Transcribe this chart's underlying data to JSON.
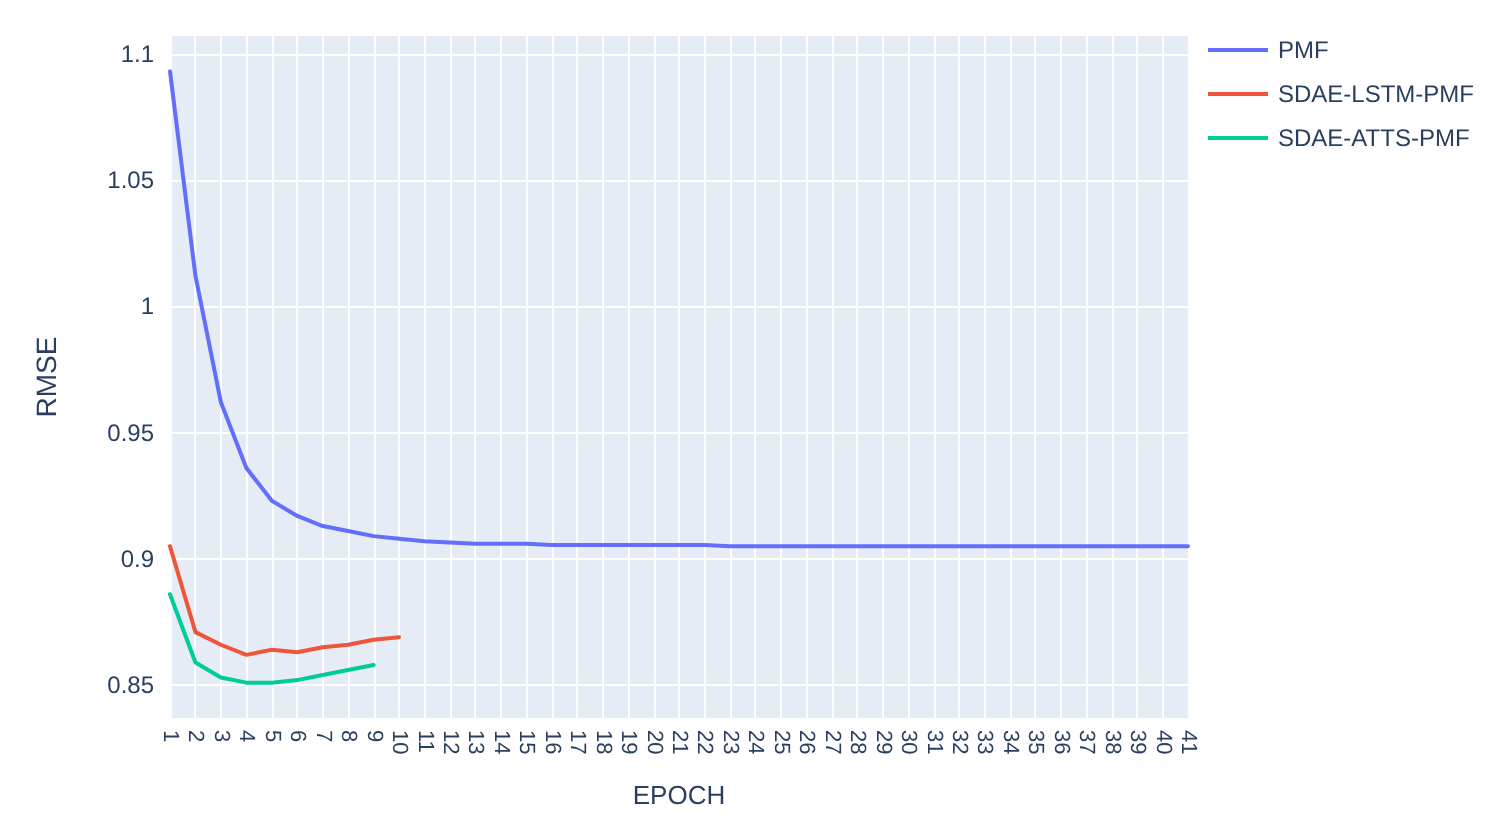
{
  "chart_data": {
    "type": "line",
    "xlabel": "EPOCH",
    "ylabel": "RMSE",
    "categories": [
      "1",
      "2",
      "3",
      "4",
      "5",
      "6",
      "7",
      "8",
      "9",
      "10",
      "11",
      "12",
      "13",
      "14",
      "15",
      "16",
      "17",
      "18",
      "19",
      "20",
      "21",
      "22",
      "23",
      "24",
      "25",
      "26",
      "27",
      "28",
      "29",
      "30",
      "31",
      "32",
      "33",
      "34",
      "35",
      "36",
      "37",
      "38",
      "39",
      "40",
      "41"
    ],
    "series": [
      {
        "name": "PMF",
        "color": "#636efa",
        "values": [
          1.093,
          1.012,
          0.962,
          0.936,
          0.923,
          0.917,
          0.913,
          0.911,
          0.909,
          0.908,
          0.907,
          0.9065,
          0.906,
          0.906,
          0.906,
          0.9055,
          0.9055,
          0.9055,
          0.9055,
          0.9055,
          0.9055,
          0.9055,
          0.905,
          0.905,
          0.905,
          0.905,
          0.905,
          0.905,
          0.905,
          0.905,
          0.905,
          0.905,
          0.905,
          0.905,
          0.905,
          0.905,
          0.905,
          0.905,
          0.905,
          0.905,
          0.905
        ]
      },
      {
        "name": "SDAE-LSTM-PMF",
        "color": "#ef553b",
        "values": [
          0.905,
          0.871,
          0.866,
          0.862,
          0.864,
          0.863,
          0.865,
          0.866,
          0.868,
          0.869,
          null,
          null,
          null,
          null,
          null,
          null,
          null,
          null,
          null,
          null,
          null,
          null,
          null,
          null,
          null,
          null,
          null,
          null,
          null,
          null,
          null,
          null,
          null,
          null,
          null,
          null,
          null,
          null,
          null,
          null,
          null
        ]
      },
      {
        "name": "SDAE-ATTS-PMF",
        "color": "#00cc96",
        "values": [
          0.886,
          0.859,
          0.853,
          0.851,
          0.851,
          0.852,
          0.854,
          0.856,
          0.858,
          null,
          null,
          null,
          null,
          null,
          null,
          null,
          null,
          null,
          null,
          null,
          null,
          null,
          null,
          null,
          null,
          null,
          null,
          null,
          null,
          null,
          null,
          null,
          null,
          null,
          null,
          null,
          null,
          null,
          null,
          null,
          null
        ]
      }
    ],
    "ylim": [
      0.837,
      1.107
    ],
    "yticks": [
      0.85,
      0.9,
      0.95,
      1,
      1.05,
      1.1
    ],
    "grid": true,
    "legend": "top right",
    "marker": "none",
    "line_style": "solid"
  }
}
